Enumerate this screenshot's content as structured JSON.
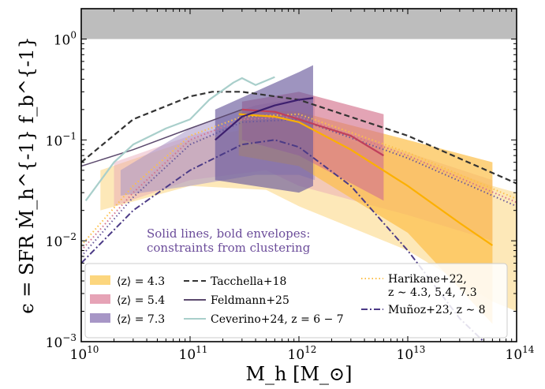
{
  "chart_data": {
    "type": "line",
    "xlabel": "M_h [M_⊙]",
    "ylabel": "ϵ = SFR Ṁ_h^{-1} f_b^{-1}",
    "xscale": "log",
    "yscale": "log",
    "xlim": [
      10000000000.0,
      100000000000000.0
    ],
    "ylim": [
      0.001,
      2.0
    ],
    "x_tick_labels": [
      {
        "value": 10000000000.0,
        "base": "10",
        "exp": "10"
      },
      {
        "value": 100000000000.0,
        "base": "10",
        "exp": "11"
      },
      {
        "value": 1000000000000.0,
        "base": "10",
        "exp": "12"
      },
      {
        "value": 10000000000000.0,
        "base": "10",
        "exp": "13"
      },
      {
        "value": 100000000000000.0,
        "base": "10",
        "exp": "14"
      }
    ],
    "y_tick_labels": [
      {
        "value": 1.0,
        "base": "10",
        "exp": "0"
      },
      {
        "value": 0.1,
        "base": "10",
        "exp": "−1"
      },
      {
        "value": 0.01,
        "base": "10",
        "exp": "−2"
      },
      {
        "value": 0.001,
        "base": "10",
        "exp": "−3"
      }
    ],
    "grey_band": {
      "y_from": 1.0,
      "y_to": 2.0,
      "color": "#bdbdbd"
    },
    "annotation": {
      "lines": [
        "Solid lines, bold envelopes:",
        "constraints from clustering"
      ],
      "color": "#6b4c9a"
    },
    "envelopes": [
      {
        "name": "⟨z⟩ = 4.3 light",
        "color": "#fcd67e",
        "opacity": 0.55,
        "upper": [
          [
            15000000000.0,
            0.05
          ],
          [
            100000000000.0,
            0.1
          ],
          [
            500000000000.0,
            0.14
          ],
          [
            1000000000000.0,
            0.13
          ],
          [
            10000000000000.0,
            0.07
          ],
          [
            60000000000000.0,
            0.035
          ],
          [
            100000000000000.0,
            0.03
          ]
        ],
        "lower": [
          [
            15000000000.0,
            0.02
          ],
          [
            100000000000.0,
            0.035
          ],
          [
            500000000000.0,
            0.032
          ],
          [
            1000000000000.0,
            0.022
          ],
          [
            10000000000000.0,
            0.008
          ],
          [
            60000000000000.0,
            0.0025
          ],
          [
            100000000000000.0,
            0.002
          ]
        ]
      },
      {
        "name": "⟨z⟩ = 5.4 light",
        "color": "#e6a3b6",
        "opacity": 0.45,
        "upper": [
          [
            20000000000.0,
            0.06
          ],
          [
            100000000000.0,
            0.11
          ],
          [
            500000000000.0,
            0.17
          ],
          [
            1000000000000.0,
            0.16
          ],
          [
            10000000000000.0,
            0.075
          ],
          [
            60000000000000.0,
            0.04
          ]
        ],
        "lower": [
          [
            20000000000.0,
            0.022
          ],
          [
            100000000000.0,
            0.04
          ],
          [
            500000000000.0,
            0.05
          ],
          [
            1000000000000.0,
            0.035
          ],
          [
            10000000000000.0,
            0.018
          ],
          [
            60000000000000.0,
            0.01
          ]
        ]
      },
      {
        "name": "⟨z⟩ = 7.3 light",
        "color": "#a796c6",
        "opacity": 0.55,
        "upper": [
          [
            23000000000.0,
            0.05
          ],
          [
            100000000000.0,
            0.13
          ],
          [
            400000000000.0,
            0.22
          ],
          [
            1000000000000.0,
            0.26
          ],
          [
            1400000000000.0,
            0.27
          ]
        ],
        "lower": [
          [
            23000000000.0,
            0.028
          ],
          [
            100000000000.0,
            0.035
          ],
          [
            400000000000.0,
            0.045
          ],
          [
            1000000000000.0,
            0.045
          ],
          [
            1400000000000.0,
            0.04
          ]
        ]
      },
      {
        "name": "⟨z⟩ = 4.3 bold",
        "color": "#fcbf49",
        "opacity": 0.7,
        "upper": [
          [
            280000000000.0,
            0.2
          ],
          [
            1000000000000.0,
            0.19
          ],
          [
            10000000000000.0,
            0.1
          ],
          [
            60000000000000.0,
            0.06
          ]
        ],
        "lower": [
          [
            280000000000.0,
            0.07
          ],
          [
            1000000000000.0,
            0.055
          ],
          [
            10000000000000.0,
            0.012
          ],
          [
            60000000000000.0,
            0.0015
          ]
        ]
      },
      {
        "name": "⟨z⟩ = 5.4 bold",
        "color": "#d4738e",
        "opacity": 0.65,
        "upper": [
          [
            300000000000.0,
            0.24
          ],
          [
            1000000000000.0,
            0.3
          ],
          [
            6000000000000.0,
            0.18
          ]
        ],
        "lower": [
          [
            300000000000.0,
            0.1
          ],
          [
            1000000000000.0,
            0.07
          ],
          [
            6000000000000.0,
            0.025
          ]
        ]
      },
      {
        "name": "⟨z⟩ = 7.3 bold",
        "color": "#6a5a9c",
        "opacity": 0.65,
        "upper": [
          [
            170000000000.0,
            0.2
          ],
          [
            1000000000000.0,
            0.47
          ],
          [
            1350000000000.0,
            0.55
          ]
        ],
        "lower": [
          [
            170000000000.0,
            0.04
          ],
          [
            1000000000000.0,
            0.03
          ],
          [
            1350000000000.0,
            0.035
          ]
        ]
      }
    ],
    "series": [
      {
        "name": "Tacchella+18",
        "style": "dashed",
        "color": "#333333",
        "width": 2.2,
        "points": [
          [
            10000000000.0,
            0.06
          ],
          [
            30000000000.0,
            0.16
          ],
          [
            100000000000.0,
            0.27
          ],
          [
            160000000000.0,
            0.3
          ],
          [
            300000000000.0,
            0.3
          ],
          [
            1000000000000.0,
            0.25
          ],
          [
            10000000000000.0,
            0.11
          ],
          [
            100000000000000.0,
            0.037
          ]
        ]
      },
      {
        "name": "Feldmann+25",
        "style": "solid",
        "color": "#5c4a6e",
        "width": 1.5,
        "points": [
          [
            10000000000.0,
            0.055
          ],
          [
            30000000000.0,
            0.08
          ],
          [
            100000000000.0,
            0.13
          ],
          [
            300000000000.0,
            0.2
          ]
        ]
      },
      {
        "name": "Ceverino+24, z = 6 − 7",
        "style": "solid",
        "color": "#a9cfcb",
        "width": 2.2,
        "points": [
          [
            11000000000.0,
            0.025
          ],
          [
            20000000000.0,
            0.06
          ],
          [
            30000000000.0,
            0.09
          ],
          [
            60000000000.0,
            0.13
          ],
          [
            100000000000.0,
            0.16
          ],
          [
            150000000000.0,
            0.25
          ],
          [
            250000000000.0,
            0.37
          ],
          [
            300000000000.0,
            0.41
          ],
          [
            400000000000.0,
            0.35
          ],
          [
            600000000000.0,
            0.42
          ]
        ]
      },
      {
        "name": "Harikane+22 z=4.3",
        "style": "dotted",
        "color": "#fcbf49",
        "width": 2,
        "points": [
          [
            10000000000.0,
            0.009
          ],
          [
            30000000000.0,
            0.035
          ],
          [
            100000000000.0,
            0.11
          ],
          [
            300000000000.0,
            0.17
          ],
          [
            1000000000000.0,
            0.18
          ],
          [
            10000000000000.0,
            0.075
          ],
          [
            100000000000000.0,
            0.026
          ]
        ]
      },
      {
        "name": "Harikane+22 z=5.4",
        "style": "dotted",
        "color": "#d4738e",
        "width": 2,
        "points": [
          [
            10000000000.0,
            0.008
          ],
          [
            30000000000.0,
            0.03
          ],
          [
            100000000000.0,
            0.1
          ],
          [
            300000000000.0,
            0.16
          ],
          [
            1000000000000.0,
            0.17
          ],
          [
            10000000000000.0,
            0.07
          ],
          [
            100000000000000.0,
            0.024
          ]
        ]
      },
      {
        "name": "Harikane+22 z=7.3",
        "style": "dotted",
        "color": "#6a5a9c",
        "width": 2,
        "points": [
          [
            10000000000.0,
            0.007
          ],
          [
            30000000000.0,
            0.027
          ],
          [
            100000000000.0,
            0.09
          ],
          [
            300000000000.0,
            0.15
          ],
          [
            1000000000000.0,
            0.16
          ],
          [
            10000000000000.0,
            0.066
          ],
          [
            100000000000000.0,
            0.022
          ]
        ]
      },
      {
        "name": "Muñoz+23, z ∼ 8",
        "style": "dashdot",
        "color": "#4b3a86",
        "width": 2,
        "points": [
          [
            10000000000.0,
            0.006
          ],
          [
            30000000000.0,
            0.02
          ],
          [
            100000000000.0,
            0.05
          ],
          [
            300000000000.0,
            0.09
          ],
          [
            600000000000.0,
            0.1
          ],
          [
            1000000000000.0,
            0.085
          ],
          [
            3000000000000.0,
            0.035
          ],
          [
            10000000000000.0,
            0.008
          ],
          [
            30000000000000.0,
            0.0017
          ],
          [
            50000000000000.0,
            0.001
          ]
        ]
      },
      {
        "name": "⟨z⟩ = 4.3 clustering",
        "style": "solid",
        "color": "#fcb000",
        "width": 2.2,
        "points": [
          [
            280000000000.0,
            0.18
          ],
          [
            600000000000.0,
            0.17
          ],
          [
            1000000000000.0,
            0.15
          ],
          [
            3000000000000.0,
            0.08
          ],
          [
            10000000000000.0,
            0.035
          ],
          [
            30000000000000.0,
            0.015
          ],
          [
            60000000000000.0,
            0.009
          ]
        ]
      },
      {
        "name": "⟨z⟩ = 5.4 clustering",
        "style": "solid",
        "color": "#c0405c",
        "width": 2.2,
        "points": [
          [
            300000000000.0,
            0.2
          ],
          [
            600000000000.0,
            0.19
          ],
          [
            1000000000000.0,
            0.16
          ],
          [
            3000000000000.0,
            0.11
          ],
          [
            6000000000000.0,
            0.07
          ]
        ]
      },
      {
        "name": "⟨z⟩ = 7.3 clustering",
        "style": "solid",
        "color": "#3d1f6e",
        "width": 2.2,
        "points": [
          [
            170000000000.0,
            0.1
          ],
          [
            300000000000.0,
            0.17
          ],
          [
            600000000000.0,
            0.22
          ],
          [
            1000000000000.0,
            0.25
          ],
          [
            1350000000000.0,
            0.26
          ]
        ]
      }
    ],
    "legend": {
      "placement": "bottom",
      "entries": [
        {
          "label": "⟨z⟩ = 4.3",
          "kind": "patch",
          "color": "#fcd67e"
        },
        {
          "label": "⟨z⟩ = 5.4",
          "kind": "patch",
          "color": "#e6a3b6"
        },
        {
          "label": "⟨z⟩ = 7.3",
          "kind": "patch",
          "color": "#a796c6"
        },
        {
          "label": "Tacchella+18",
          "kind": "line",
          "style": "dashed",
          "color": "#333333"
        },
        {
          "label": "Feldmann+25",
          "kind": "line",
          "style": "solid",
          "color": "#5c4a6e"
        },
        {
          "label": "Ceverino+24, z = 6 − 7",
          "kind": "line",
          "style": "solid",
          "color": "#a9cfcb"
        },
        {
          "label": "Harikane+22,",
          "label2": "z ∼ 4.3, 5.4, 7.3",
          "kind": "line",
          "style": "dotted",
          "color": "#fcbf49"
        },
        {
          "label": "Muñoz+23, z ∼ 8",
          "kind": "line",
          "style": "dashdot",
          "color": "#4b3a86"
        }
      ]
    }
  }
}
